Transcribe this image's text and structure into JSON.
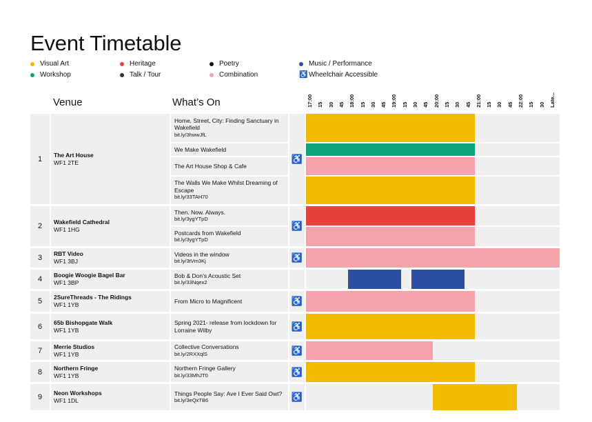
{
  "title": "Event Timetable",
  "legend": [
    {
      "label": "Visual Art",
      "color": "#f2bc00",
      "kind": "dot"
    },
    {
      "label": "Heritage",
      "color": "#e8403a",
      "kind": "dot"
    },
    {
      "label": "Poetry",
      "color": "#111111",
      "kind": "dot"
    },
    {
      "label": "Music / Performance",
      "color": "#2c4fa1",
      "kind": "dot"
    },
    {
      "label": "Workshop",
      "color": "#0ea57a",
      "kind": "dot"
    },
    {
      "label": "Talk / Tour",
      "color": "#333333",
      "kind": "dot"
    },
    {
      "label": "Combination",
      "color": "#f4a3aa",
      "kind": "dot"
    },
    {
      "label": "Wheelchair Accessible",
      "color": "#111111",
      "kind": "icon"
    }
  ],
  "headers": {
    "venue": "Venue",
    "whats_on": "What’s On"
  },
  "time_labels": [
    "17:00",
    "15",
    "30",
    "45",
    "18:00",
    "15",
    "30",
    "45",
    "19:00",
    "15",
    "30",
    "45",
    "20:00",
    "15",
    "30",
    "45",
    "21:00",
    "15",
    "30",
    "45",
    "22:00",
    "15",
    "30",
    "Late..."
  ],
  "accessible_icon": "♿",
  "colors": {
    "yellow": "#f2bc00",
    "red": "#e8403a",
    "blue": "#2c4fa1",
    "green": "#0ea57a",
    "pink": "#f4a3aa"
  },
  "venues": [
    {
      "number": "1",
      "name": "The Art House",
      "postcode": "WF1 2TE",
      "accessible": true,
      "events": [
        {
          "title": "Home, Street, City: Finding Sanctuary in Wakefield",
          "link": "bit.ly/3hwwJfL",
          "category": "Visual Art",
          "start": "17:00",
          "end": "21:00"
        },
        {
          "title": "We Make Wakefield",
          "link": "",
          "category": "Workshop",
          "start": "17:00",
          "end": "21:00"
        },
        {
          "title": "The Art House Shop & Cafe",
          "link": "",
          "category": "Combination",
          "start": "17:00",
          "end": "21:00"
        },
        {
          "title": "The Walls We Make Whilst Dreaming of Escape",
          "link": "bit.ly/33TAH70",
          "category": "Visual Art",
          "start": "17:00",
          "end": "21:00"
        }
      ]
    },
    {
      "number": "2",
      "name": "Wakefield Cathedral",
      "postcode": "WF1 1HG",
      "accessible": true,
      "events": [
        {
          "title": "Then. Now. Always.",
          "link": "bit.ly/3ygYTpD",
          "category": "Heritage",
          "start": "17:00",
          "end": "21:00"
        },
        {
          "title": "Postcards from Wakefield",
          "link": "bit.ly/3ygYTpD",
          "category": "Combination",
          "start": "17:00",
          "end": "21:00"
        }
      ]
    },
    {
      "number": "3",
      "name": "RBT Video",
      "postcode": "WF1 3BJ",
      "accessible": true,
      "events": [
        {
          "title": "Videos in the window",
          "link": "bit.ly/3tVm3Kj",
          "category": "Combination",
          "start": "17:00",
          "end": "Late"
        }
      ]
    },
    {
      "number": "4",
      "name": "Boogie Woogie Bagel Bar",
      "postcode": "WF1 3BP",
      "accessible": false,
      "events": [
        {
          "title": "Bob & Don’s Acoustic Set",
          "link": "bit.ly/33Nqex2",
          "category": "Music / Performance",
          "start": "18:00",
          "end": "21:00",
          "slots": [
            [
              "18:00",
              "19:15"
            ],
            [
              "19:30",
              "20:45"
            ]
          ]
        }
      ]
    },
    {
      "number": "5",
      "name": "2SureThreads - The Ridings",
      "postcode": "WF1 1YB",
      "accessible": true,
      "events": [
        {
          "title": "From Micro to Magnificent",
          "link": "",
          "category": "Combination",
          "start": "17:00",
          "end": "21:00"
        }
      ]
    },
    {
      "number": "6",
      "name": "65b Bishopgate Walk",
      "postcode": "WF1 1YB",
      "accessible": true,
      "events": [
        {
          "title": "Spring 2021- release from lockdown for Lorraine Wilby",
          "link": "",
          "category": "Visual Art",
          "start": "17:00",
          "end": "21:00"
        }
      ]
    },
    {
      "number": "7",
      "name": "Merrie Studios",
      "postcode": "WF1 1YB",
      "accessible": true,
      "events": [
        {
          "title": "Collective Conversations",
          "link": "bit.ly/2RXXqlS",
          "category": "Combination",
          "start": "17:00",
          "end": "20:00"
        }
      ]
    },
    {
      "number": "8",
      "name": "Northern Fringe",
      "postcode": "WF1 1YB",
      "accessible": true,
      "events": [
        {
          "title": "Northern Fringe Gallery",
          "link": "bit.ly/33MhJT0",
          "category": "Visual Art",
          "start": "17:00",
          "end": "21:00"
        }
      ]
    },
    {
      "number": "9",
      "name": "Neon Workshops",
      "postcode": "WF1 1DL",
      "accessible": true,
      "events": [
        {
          "title": "Things People Say: Ave I Ever Said Owt?",
          "link": "bit.ly/3eQxTB6",
          "category": "Visual Art",
          "start": "20:00",
          "end": "22:00"
        }
      ]
    }
  ]
}
